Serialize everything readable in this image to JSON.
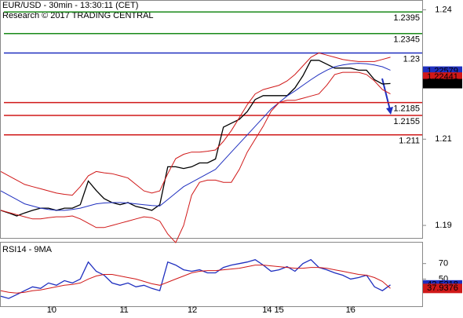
{
  "chart_data": [
    {
      "type": "line",
      "title": "EUR/USD - 30min - 13:30:11 (CET)",
      "subtitle": "Research © 2017 TRADING CENTRAL",
      "x": [
        0,
        1,
        2,
        3,
        4,
        5,
        6,
        7,
        8,
        9,
        10,
        11,
        12,
        13,
        14,
        15,
        16,
        17,
        18,
        19,
        20,
        21,
        22,
        23,
        24,
        25,
        26,
        27,
        28,
        29,
        30,
        31,
        32,
        33,
        34,
        35,
        36,
        37,
        38,
        39,
        40,
        41,
        42,
        43,
        44,
        45,
        46,
        47,
        48,
        49
      ],
      "xlim": [
        0,
        53
      ],
      "ylim": [
        1.1871,
        1.2421
      ],
      "yticks": [
        1.24,
        1.21,
        1.19
      ],
      "series": [
        {
          "color": "#000000",
          "values": [
            1.1935,
            1.1929,
            1.1922,
            1.1929,
            1.1935,
            1.194,
            1.194,
            1.1935,
            1.194,
            1.194,
            1.1948,
            1.2003,
            1.1981,
            1.1962,
            1.1953,
            1.1948,
            1.1953,
            1.1944,
            1.194,
            1.1935,
            1.1948,
            1.2036,
            1.2036,
            1.2032,
            1.2036,
            1.2045,
            1.2045,
            1.2054,
            1.2128,
            1.2137,
            1.2146,
            1.2164,
            1.2192,
            1.2201,
            1.2201,
            1.2201,
            1.2201,
            1.2219,
            1.2247,
            1.2283,
            1.2283,
            1.2274,
            1.2265,
            1.2265,
            1.2265,
            1.226,
            1.226,
            1.2238,
            1.2228,
            1.2229
          ]
        },
        {
          "color": "#1f2fbf",
          "values": [
            1.198,
            1.197,
            1.196,
            1.195,
            1.1945,
            1.194,
            1.1937,
            1.1935,
            1.1935,
            1.1937,
            1.194,
            1.1945,
            1.195,
            1.1952,
            1.1953,
            1.1953,
            1.1952,
            1.195,
            1.1948,
            1.1946,
            1.1945,
            1.196,
            1.1975,
            1.199,
            1.2,
            1.201,
            1.202,
            1.203,
            1.205,
            1.207,
            1.209,
            1.211,
            1.213,
            1.215,
            1.217,
            1.2185,
            1.22,
            1.2212,
            1.2225,
            1.2238,
            1.225,
            1.226,
            1.2268,
            1.2272,
            1.2275,
            1.2276,
            1.2275,
            1.2272,
            1.2268,
            1.226
          ]
        },
        {
          "color": "#d01818",
          "values": [
            1.2025,
            1.2015,
            1.2005,
            1.1995,
            1.199,
            1.1985,
            1.198,
            1.1975,
            1.1972,
            1.197,
            1.199,
            1.2015,
            1.2025,
            1.2022,
            1.202,
            1.2015,
            1.201,
            1.1995,
            1.198,
            1.1975,
            1.198,
            1.202,
            1.2055,
            1.2065,
            1.207,
            1.207,
            1.2072,
            1.2075,
            1.2095,
            1.212,
            1.215,
            1.218,
            1.2205,
            1.2215,
            1.222,
            1.2225,
            1.2235,
            1.225,
            1.227,
            1.229,
            1.23,
            1.2295,
            1.229,
            1.2285,
            1.2282,
            1.228,
            1.228,
            1.228,
            1.2285,
            1.229
          ]
        },
        {
          "color": "#d01818",
          "values": [
            1.1935,
            1.193,
            1.1925,
            1.192,
            1.1915,
            1.1915,
            1.1918,
            1.192,
            1.192,
            1.1922,
            1.1915,
            1.1905,
            1.1895,
            1.1895,
            1.19,
            1.1905,
            1.191,
            1.1915,
            1.192,
            1.1918,
            1.191,
            1.188,
            1.186,
            1.19,
            1.197,
            1.2,
            1.2005,
            1.2005,
            1.2,
            1.2,
            1.203,
            1.207,
            1.21,
            1.213,
            1.2165,
            1.2185,
            1.219,
            1.219,
            1.2195,
            1.22,
            1.2205,
            1.2225,
            1.225,
            1.2255,
            1.2255,
            1.2255,
            1.225,
            1.2235,
            1.2215,
            1.2205
          ]
        }
      ],
      "levels": {
        "values": [
          1.2395,
          1.2345,
          1.23,
          1.2185,
          1.2155,
          1.211
        ],
        "colors": [
          "#1a8a1a",
          "#1a8a1a",
          "#1f2fbf",
          "#d01818",
          "#d01818",
          "#d01818"
        ]
      },
      "price_tags": {
        "values": [
          1.22579,
          1.22441,
          1.22288
        ],
        "colors": [
          "#1f2fbf",
          "#d01818",
          "#000000"
        ]
      }
    },
    {
      "type": "line",
      "title": "RSI14 - 9MA",
      "x": [
        0,
        1,
        2,
        3,
        4,
        5,
        6,
        7,
        8,
        9,
        10,
        11,
        12,
        13,
        14,
        15,
        16,
        17,
        18,
        19,
        20,
        21,
        22,
        23,
        24,
        25,
        26,
        27,
        28,
        29,
        30,
        31,
        32,
        33,
        34,
        35,
        36,
        37,
        38,
        39,
        40,
        41,
        42,
        43,
        44,
        45,
        46,
        47,
        48,
        49
      ],
      "xlim": [
        0,
        53
      ],
      "xticks": [
        {
          "value": 6.4,
          "label": "10"
        },
        {
          "value": 15.5,
          "label": "11"
        },
        {
          "value": 24.1,
          "label": "12"
        },
        {
          "value": 33.5,
          "label": "14"
        },
        {
          "value": 35,
          "label": "15"
        },
        {
          "value": 44,
          "label": "16"
        }
      ],
      "ylim": [
        15,
        97
      ],
      "yticks": [
        70,
        50
      ],
      "series": [
        {
          "color": "#1f2fbf",
          "values": [
            28,
            25,
            30,
            35,
            40,
            38,
            45,
            42,
            48,
            45,
            50,
            72,
            60,
            55,
            45,
            42,
            45,
            40,
            42,
            38,
            35,
            72,
            68,
            62,
            60,
            62,
            58,
            58,
            65,
            68,
            70,
            72,
            75,
            68,
            60,
            62,
            66,
            60,
            70,
            75,
            65,
            62,
            58,
            55,
            50,
            52,
            55,
            40,
            35,
            42.52
          ]
        },
        {
          "color": "#d01818",
          "values": [
            35,
            33,
            32,
            33,
            35,
            36,
            38,
            40,
            42,
            43,
            45,
            50,
            54,
            56,
            56,
            54,
            52,
            50,
            47,
            44,
            42,
            46,
            50,
            54,
            58,
            60,
            61,
            61,
            62,
            63,
            64,
            66,
            68,
            68,
            67,
            66,
            65,
            64,
            64,
            65,
            65,
            64,
            62,
            60,
            58,
            56,
            55,
            52,
            47,
            37.94
          ]
        }
      ],
      "price_tags": {
        "values": [
          42.5218,
          37.9376
        ],
        "colors": [
          "#1f2fbf",
          "#d01818"
        ]
      }
    }
  ]
}
